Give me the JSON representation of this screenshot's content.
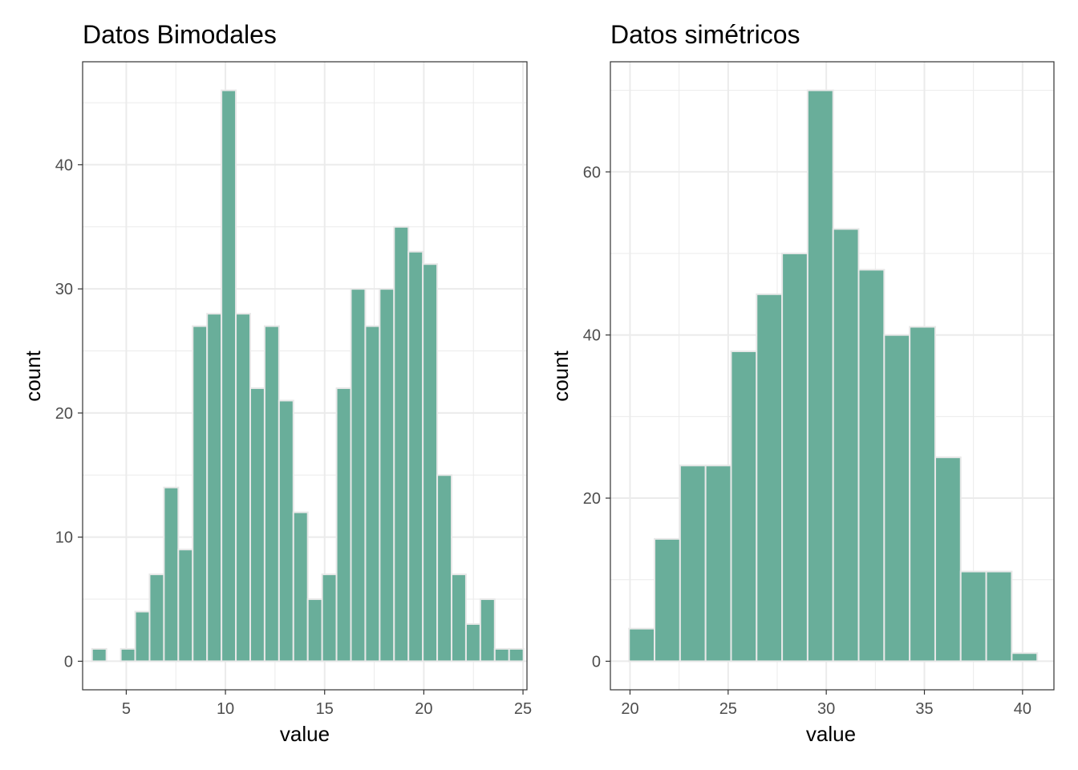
{
  "colors": {
    "bar_fill": "#69AE9A",
    "bar_stroke": "#e8e8e8"
  },
  "chart_data": [
    {
      "type": "bar",
      "subtype": "histogram",
      "title": "Datos Bimodales",
      "xlabel": "value",
      "ylabel": "count",
      "xlim": [
        2.8,
        25.2
      ],
      "ylim": [
        -2.3,
        48.3
      ],
      "xticks": [
        5,
        10,
        15,
        20,
        25
      ],
      "yticks": [
        0,
        10,
        20,
        30,
        40
      ],
      "grid": true,
      "bin_width": 0.725,
      "bin_start": 3.275,
      "values": [
        1,
        0,
        1,
        4,
        7,
        14,
        9,
        27,
        28,
        46,
        28,
        22,
        27,
        21,
        12,
        5,
        7,
        22,
        30,
        27,
        30,
        35,
        33,
        32,
        15,
        7,
        3,
        5,
        1,
        1
      ]
    },
    {
      "type": "bar",
      "subtype": "histogram",
      "title": "Datos simétricos",
      "xlabel": "value",
      "ylabel": "count",
      "xlim": [
        19.0,
        41.6
      ],
      "ylim": [
        -3.5,
        73.5
      ],
      "xticks": [
        20,
        25,
        30,
        35,
        40
      ],
      "yticks": [
        0,
        20,
        40,
        60
      ],
      "grid": true,
      "bin_width": 1.3,
      "bin_start": 19.95,
      "values": [
        4,
        15,
        24,
        24,
        38,
        45,
        50,
        70,
        53,
        48,
        40,
        41,
        25,
        11,
        11,
        1
      ]
    }
  ]
}
